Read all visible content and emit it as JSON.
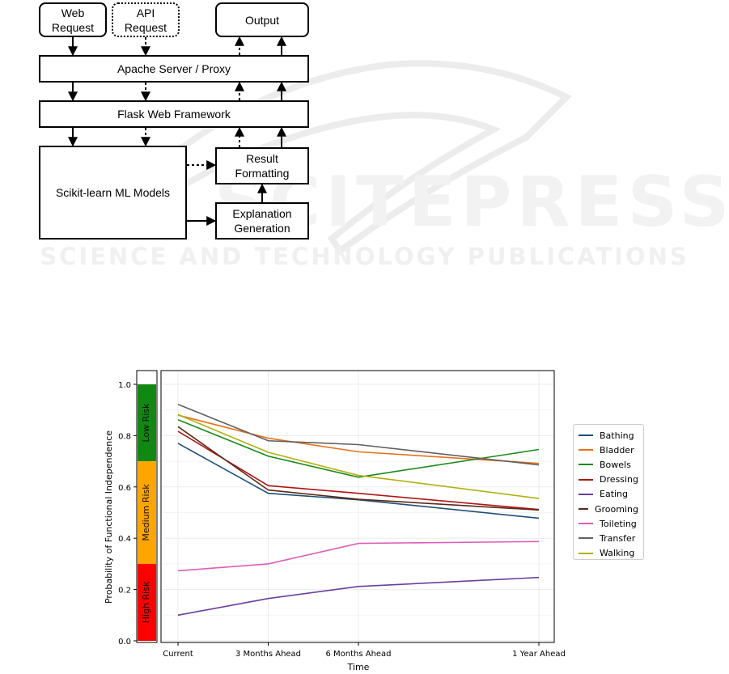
{
  "watermark": {
    "big": "SCITEPRESS",
    "small": "SCIENCE AND TECHNOLOGY PUBLICATIONS"
  },
  "diagram": {
    "web_request": "Web Request",
    "api_request": "API Request",
    "output": "Output",
    "apache": "Apache Server / Proxy",
    "flask": "Flask Web Framework",
    "sklearn": "Scikit-learn ML Models",
    "result_formatting": "Result Formatting",
    "explanation_generation": "Explanation Generation"
  },
  "chart_data": {
    "type": "line",
    "xlabel": "Time",
    "ylabel": "Probability of Functional Independence",
    "categories": [
      "Current",
      "3 Months Ahead",
      "6 Months Ahead",
      "1 Year Ahead"
    ],
    "x": [
      0,
      3,
      6,
      12
    ],
    "ylim": [
      0,
      1.0
    ],
    "yticks": [
      "0.0",
      "0.2",
      "0.4",
      "0.6",
      "0.8",
      "1.0"
    ],
    "grid": true,
    "legend_position": "right",
    "risk_bands": [
      {
        "label": "Low Risk",
        "from": 0.7,
        "to": 1.0,
        "color": "#118811"
      },
      {
        "label": "Medium Risk",
        "from": 0.3,
        "to": 0.7,
        "color": "#ffa500"
      },
      {
        "label": "High Risk",
        "from": 0.0,
        "to": 0.3,
        "color": "#ff0000"
      }
    ],
    "series": [
      {
        "name": "Bathing",
        "color": "#1f4e79",
        "values": [
          0.77,
          0.575,
          0.55,
          0.478
        ]
      },
      {
        "name": "Bladder",
        "color": "#e8711b",
        "values": [
          0.88,
          0.79,
          0.737,
          0.692
        ]
      },
      {
        "name": "Bowels",
        "color": "#1a8a1a",
        "values": [
          0.862,
          0.72,
          0.638,
          0.746
        ]
      },
      {
        "name": "Dressing",
        "color": "#b01515",
        "values": [
          0.817,
          0.605,
          0.575,
          0.512
        ]
      },
      {
        "name": "Eating",
        "color": "#6a3ea1",
        "values": [
          0.1,
          0.165,
          0.212,
          0.247
        ]
      },
      {
        "name": "Grooming",
        "color": "#5c2a18",
        "values": [
          0.835,
          0.588,
          0.552,
          0.51
        ]
      },
      {
        "name": "Toileting",
        "color": "#dd5db8",
        "values": [
          0.273,
          0.3,
          0.38,
          0.387
        ]
      },
      {
        "name": "Transfer",
        "color": "#606060",
        "values": [
          0.922,
          0.78,
          0.765,
          0.686
        ]
      },
      {
        "name": "Walking",
        "color": "#b0b010",
        "values": [
          0.882,
          0.735,
          0.645,
          0.555
        ]
      }
    ]
  }
}
